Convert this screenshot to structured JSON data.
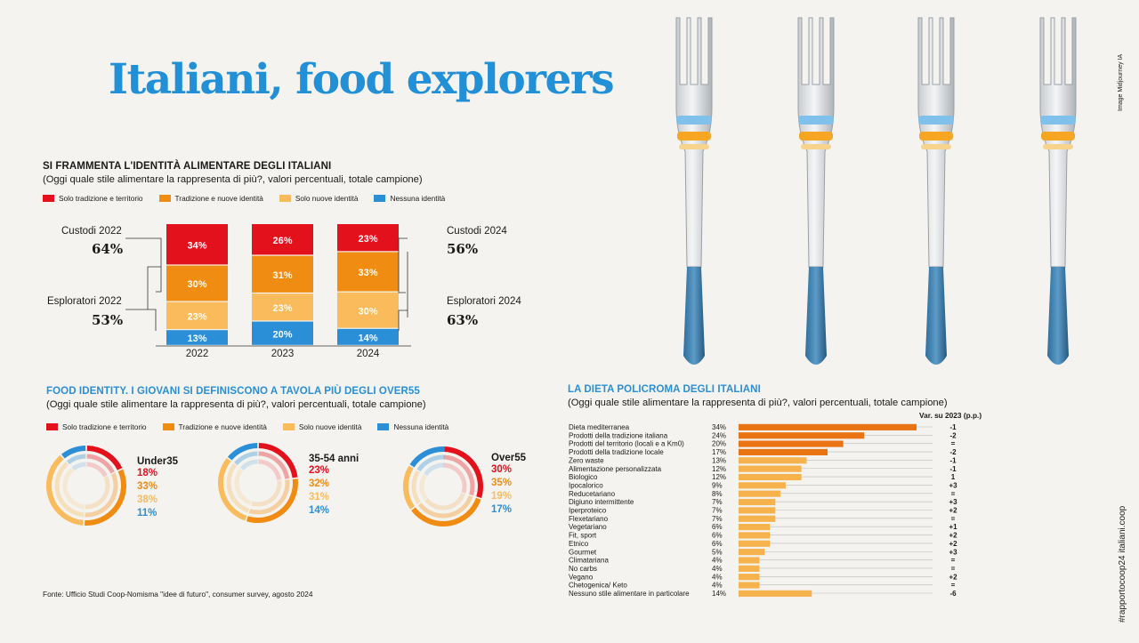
{
  "page": {
    "title": "Italiani, food explorers",
    "image_credit": "Image Midjourney IA",
    "side_tag": "#rapportocoop24 italiani.coop",
    "source": "Fonte: Ufficio Studi Coop-Nomisma \"idee di futuro\", consumer survey, agosto 2024"
  },
  "colors": {
    "red": "#e2111b",
    "orange": "#f08c12",
    "light_orange": "#f9bb5c",
    "blue": "#2a8fd6",
    "title_blue": "#2190d6",
    "bar_dark": "#ea7414",
    "bar_light": "#f6b24c"
  },
  "legend": [
    {
      "label": "Solo tradizione e territorio",
      "color": "#e2111b"
    },
    {
      "label": "Tradizione e nuove identità",
      "color": "#f08c12"
    },
    {
      "label": "Solo nuove identità",
      "color": "#f9bb5c"
    },
    {
      "label": "Nessuna identità",
      "color": "#2a8fd6"
    }
  ],
  "section1": {
    "title": "SI FRAMMENTA L'IDENTITÀ ALIMENTARE DEGLI ITALIANI",
    "subtitle": "(Oggi quale stile alimentare la rappresenta di più?, valori percentuali, totale campione)",
    "left_groups": [
      {
        "label": "Custodi 2022",
        "value": "64%"
      },
      {
        "label": "Esploratori 2022",
        "value": "53%"
      }
    ],
    "right_groups": [
      {
        "label": "Custodi 2024",
        "value": "56%"
      },
      {
        "label": "Esploratori 2024",
        "value": "63%"
      }
    ]
  },
  "section2": {
    "title": "FOOD IDENTITY. I GIOVANI SI DEFINISCONO A TAVOLA PIÙ DEGLI OVER55",
    "subtitle": "(Oggi quale stile alimentare la rappresenta di più?, valori percentuali, totale campione)"
  },
  "section3": {
    "title": "LA DIETA POLICROMA DEGLI ITALIANI",
    "subtitle": "(Oggi quale stile alimentare la rappresenta di più?, valori percentuali, totale campione)",
    "var_header": "Var. su 2023 (p.p.)"
  },
  "chart_data": [
    {
      "type": "bar",
      "stacked": true,
      "categories": [
        "2022",
        "2023",
        "2024"
      ],
      "series": [
        {
          "name": "Nessuna identità",
          "values": [
            13,
            20,
            14
          ],
          "labels": [
            "13%",
            "20%",
            "14%"
          ]
        },
        {
          "name": "Solo nuove identità",
          "values": [
            23,
            23,
            30
          ],
          "labels": [
            "23%",
            "23%",
            "30%"
          ]
        },
        {
          "name": "Tradizione e nuove identità",
          "values": [
            30,
            31,
            33
          ],
          "labels": [
            "30%",
            "31%",
            "33%"
          ]
        },
        {
          "name": "Solo tradizione e territorio",
          "values": [
            34,
            26,
            23
          ],
          "labels": [
            "34%",
            "26%",
            "23%"
          ]
        }
      ]
    },
    {
      "type": "pie",
      "style": "concentric-rings",
      "categories": [
        "Solo tradizione e territorio",
        "Tradizione e nuove identità",
        "Solo nuove identità",
        "Nessuna identità"
      ],
      "groups": [
        {
          "name": "Under35",
          "values": [
            18,
            33,
            38,
            11
          ],
          "labels": [
            "18%",
            "33%",
            "38%",
            "11%"
          ]
        },
        {
          "name": "35-54 anni",
          "values": [
            23,
            32,
            31,
            14
          ],
          "labels": [
            "23%",
            "32%",
            "31%",
            "14%"
          ]
        },
        {
          "name": "Over55",
          "values": [
            30,
            35,
            19,
            17
          ],
          "labels": [
            "30%",
            "35%",
            "19%",
            "17%"
          ]
        }
      ]
    },
    {
      "type": "bar",
      "orientation": "horizontal",
      "xlim": [
        0,
        34
      ],
      "rows": [
        {
          "label": "Dieta mediterranea",
          "value": 34,
          "value_label": "34%",
          "var": "-1",
          "highlight": true
        },
        {
          "label": "Prodotti della tradizione italiana",
          "value": 24,
          "value_label": "24%",
          "var": "-2",
          "highlight": true
        },
        {
          "label": "Prodotti del territorio (locali e a Km0)",
          "value": 20,
          "value_label": "20%",
          "var": "=",
          "highlight": true
        },
        {
          "label": "Prodotti della tradizione locale",
          "value": 17,
          "value_label": "17%",
          "var": "-2",
          "highlight": true
        },
        {
          "label": "Zero waste",
          "value": 13,
          "value_label": "13%",
          "var": "-1",
          "highlight": false
        },
        {
          "label": "Alimentazione personalizzata",
          "value": 12,
          "value_label": "12%",
          "var": "-1",
          "highlight": false
        },
        {
          "label": "Biologico",
          "value": 12,
          "value_label": "12%",
          "var": "1",
          "highlight": false
        },
        {
          "label": "Ipocalorico",
          "value": 9,
          "value_label": "9%",
          "var": "+3",
          "highlight": false
        },
        {
          "label": "Reducetariano",
          "value": 8,
          "value_label": "8%",
          "var": "=",
          "highlight": false
        },
        {
          "label": "Digiuno intermittente",
          "value": 7,
          "value_label": "7%",
          "var": "+3",
          "highlight": false
        },
        {
          "label": "Iperproteico",
          "value": 7,
          "value_label": "7%",
          "var": "+2",
          "highlight": false
        },
        {
          "label": "Flexetariano",
          "value": 7,
          "value_label": "7%",
          "var": "=",
          "highlight": false
        },
        {
          "label": "Vegetariano",
          "value": 6,
          "value_label": "6%",
          "var": "+1",
          "highlight": false
        },
        {
          "label": "Fit, sport",
          "value": 6,
          "value_label": "6%",
          "var": "+2",
          "highlight": false
        },
        {
          "label": "Etnico",
          "value": 6,
          "value_label": "6%",
          "var": "+2",
          "highlight": false
        },
        {
          "label": "Gourmet",
          "value": 5,
          "value_label": "5%",
          "var": "+3",
          "highlight": false
        },
        {
          "label": "Climatariana",
          "value": 4,
          "value_label": "4%",
          "var": "=",
          "highlight": false
        },
        {
          "label": "No carbs",
          "value": 4,
          "value_label": "4%",
          "var": "=",
          "highlight": false
        },
        {
          "label": "Vegano",
          "value": 4,
          "value_label": "4%",
          "var": "+2",
          "highlight": false
        },
        {
          "label": "Chetogenica/ Keto",
          "value": 4,
          "value_label": "4%",
          "var": "=",
          "highlight": false
        },
        {
          "label": "Nessuno stile alimentare in particolare",
          "value": 14,
          "value_label": "14%",
          "var": "-6",
          "highlight": false
        }
      ]
    }
  ]
}
